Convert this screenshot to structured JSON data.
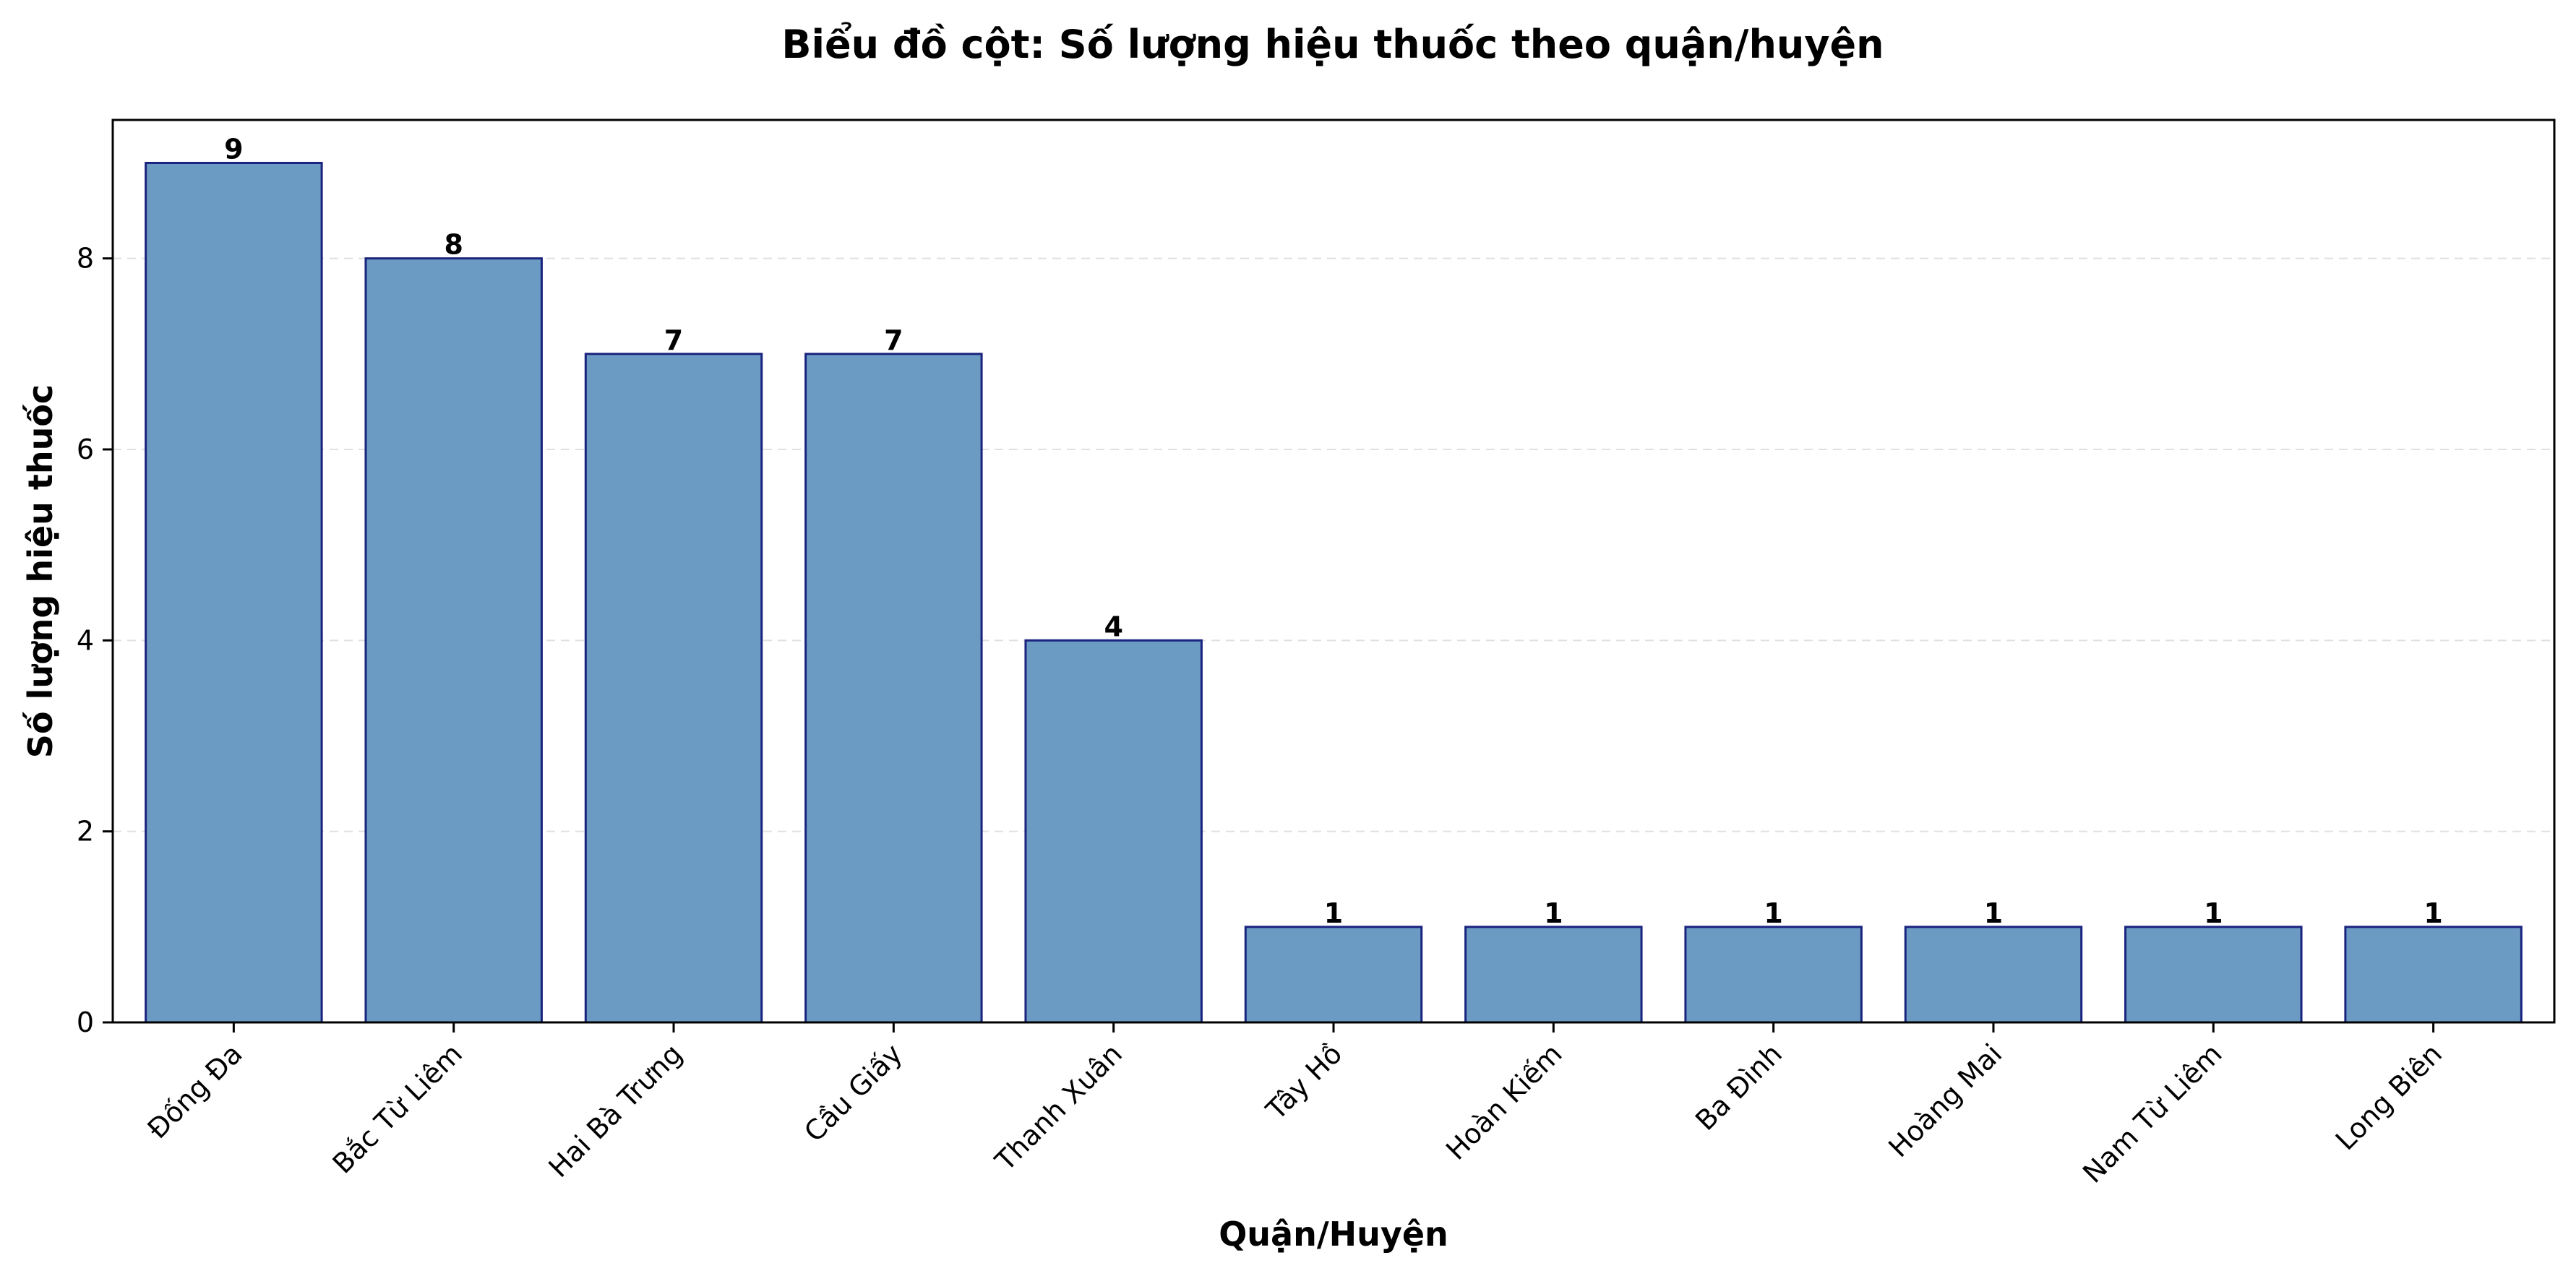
{
  "chart_data": {
    "type": "bar",
    "title": "Biểu đồ cột: Số lượng hiệu thuốc theo quận/huyện",
    "xlabel": "Quận/Huyện",
    "ylabel": "Số lượng hiệu thuốc",
    "categories": [
      "Đống Đa",
      "Bắc Từ Liêm",
      "Hai Bà Trưng",
      "Cầu Giấy",
      "Thanh Xuân",
      "Tây Hồ",
      "Hoàn Kiếm",
      "Ba Đình",
      "Hoàng Mai",
      "Nam Từ Liêm",
      "Long Biên"
    ],
    "values": [
      9,
      8,
      7,
      7,
      4,
      1,
      1,
      1,
      1,
      1,
      1
    ],
    "ylim": [
      0,
      9.45
    ],
    "yticks": [
      0,
      2,
      4,
      6,
      8
    ],
    "grid": true,
    "bar_color": "#6b9bc3",
    "bar_edge_color": "#1a237e",
    "show_data_labels": true
  }
}
